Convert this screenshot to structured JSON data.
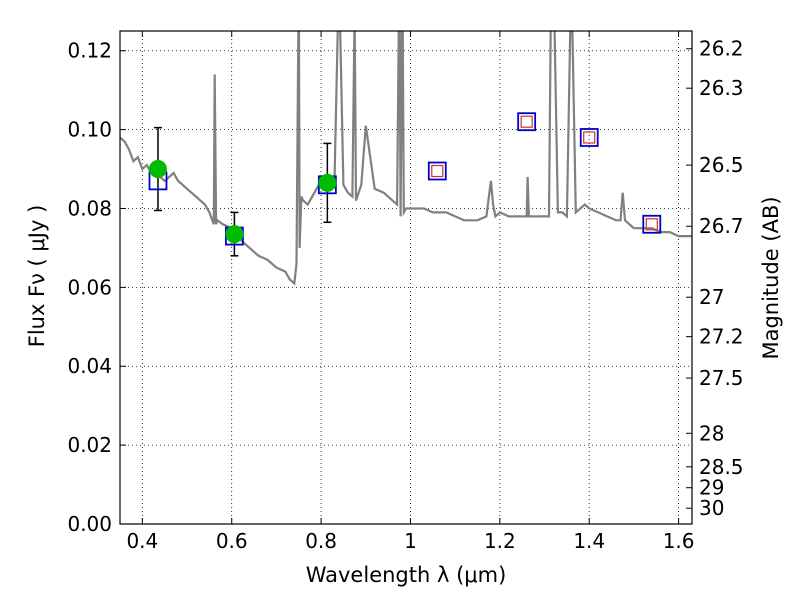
{
  "chart_data": {
    "type": "scatter",
    "xlabel": "Wavelength  λ (μm)",
    "ylabel": "Flux  Fν  ( μJy )",
    "ylabel_right": "Magnitude (AB)",
    "xlim": [
      0.35,
      1.63
    ],
    "ylim": [
      0.0,
      0.125
    ],
    "grid": true,
    "x_ticks": [
      0.4,
      0.6,
      0.8,
      1.0,
      1.2,
      1.4,
      1.6
    ],
    "x_tick_labels": [
      "0.4",
      "0.6",
      "0.8",
      "1",
      "1.2",
      "1.4",
      "1.6"
    ],
    "y_ticks": [
      0.0,
      0.02,
      0.04,
      0.06,
      0.08,
      0.1,
      0.12
    ],
    "y_tick_labels": [
      "0.00",
      "0.02",
      "0.04",
      "0.06",
      "0.08",
      "0.10",
      "0.12"
    ],
    "right_ticks": [
      {
        "flux": 0.1205,
        "label": "26.2"
      },
      {
        "flux": 0.1105,
        "label": "26.3"
      },
      {
        "flux": 0.091,
        "label": "26.5"
      },
      {
        "flux": 0.0755,
        "label": "26.7"
      },
      {
        "flux": 0.0575,
        "label": "27"
      },
      {
        "flux": 0.0475,
        "label": "27.2"
      },
      {
        "flux": 0.037,
        "label": "27.5"
      },
      {
        "flux": 0.023,
        "label": "28"
      },
      {
        "flux": 0.0145,
        "label": "28.5"
      },
      {
        "flux": 0.0092,
        "label": "29"
      },
      {
        "flux": 0.004,
        "label": "30"
      }
    ],
    "series": [
      {
        "kind": "model_spectrum",
        "color": "#808080",
        "x": [
          0.35,
          0.36,
          0.37,
          0.38,
          0.39,
          0.4,
          0.41,
          0.42,
          0.43,
          0.44,
          0.45,
          0.46,
          0.47,
          0.48,
          0.49,
          0.5,
          0.51,
          0.52,
          0.53,
          0.54,
          0.55,
          0.56,
          0.562,
          0.565,
          0.568,
          0.58,
          0.6,
          0.62,
          0.64,
          0.66,
          0.68,
          0.7,
          0.72,
          0.73,
          0.74,
          0.745,
          0.75,
          0.752,
          0.756,
          0.76,
          0.77,
          0.78,
          0.79,
          0.8,
          0.81,
          0.82,
          0.83,
          0.84,
          0.85,
          0.86,
          0.87,
          0.875,
          0.878,
          0.881,
          0.89,
          0.9,
          0.92,
          0.94,
          0.96,
          0.97,
          0.975,
          0.978,
          0.982,
          0.985,
          0.99,
          1.0,
          1.01,
          1.03,
          1.05,
          1.08,
          1.1,
          1.12,
          1.15,
          1.17,
          1.18,
          1.185,
          1.19,
          1.2,
          1.22,
          1.25,
          1.26,
          1.262,
          1.265,
          1.268,
          1.27,
          1.29,
          1.31,
          1.315,
          1.32,
          1.33,
          1.34,
          1.35,
          1.36,
          1.37,
          1.38,
          1.39,
          1.4,
          1.42,
          1.44,
          1.46,
          1.47,
          1.475,
          1.48,
          1.49,
          1.5,
          1.52,
          1.54,
          1.56,
          1.58,
          1.6,
          1.62,
          1.63
        ],
        "y": [
          0.098,
          0.097,
          0.095,
          0.092,
          0.093,
          0.09,
          0.091,
          0.089,
          0.088,
          0.088,
          0.087,
          0.088,
          0.089,
          0.087,
          0.086,
          0.085,
          0.084,
          0.083,
          0.082,
          0.081,
          0.079,
          0.076,
          0.114,
          0.076,
          0.077,
          0.076,
          0.075,
          0.072,
          0.07,
          0.068,
          0.067,
          0.065,
          0.064,
          0.062,
          0.061,
          0.066,
          0.14,
          0.07,
          0.083,
          0.082,
          0.081,
          0.083,
          0.085,
          0.087,
          0.088,
          0.088,
          0.087,
          0.14,
          0.086,
          0.084,
          0.083,
          0.13,
          0.082,
          0.083,
          0.086,
          0.101,
          0.085,
          0.084,
          0.082,
          0.081,
          0.14,
          0.078,
          0.14,
          0.079,
          0.08,
          0.08,
          0.08,
          0.08,
          0.079,
          0.079,
          0.078,
          0.077,
          0.077,
          0.078,
          0.087,
          0.081,
          0.078,
          0.079,
          0.078,
          0.078,
          0.078,
          0.088,
          0.078,
          0.078,
          0.078,
          0.078,
          0.078,
          0.14,
          0.14,
          0.079,
          0.079,
          0.078,
          0.14,
          0.079,
          0.08,
          0.081,
          0.08,
          0.079,
          0.078,
          0.077,
          0.077,
          0.084,
          0.077,
          0.076,
          0.075,
          0.075,
          0.075,
          0.074,
          0.074,
          0.073,
          0.073,
          0.073
        ]
      },
      {
        "kind": "model_photometry",
        "marker": "open-square",
        "color": "#0000cc",
        "x": [
          0.435,
          0.606,
          0.814,
          1.06,
          1.26,
          1.4,
          1.54
        ],
        "y": [
          0.087,
          0.073,
          0.086,
          0.0895,
          0.102,
          0.098,
          0.076
        ]
      },
      {
        "kind": "model_photometry_inner",
        "marker": "open-square-small",
        "color": "#cc3333",
        "x": [
          1.06,
          1.26,
          1.4,
          1.54
        ],
        "y": [
          0.0895,
          0.102,
          0.098,
          0.076
        ]
      },
      {
        "kind": "observed",
        "marker": "filled-circle",
        "color": "#00bb00",
        "x": [
          0.435,
          0.606,
          0.814
        ],
        "y": [
          0.09,
          0.0735,
          0.0865
        ],
        "yerr_low": [
          0.0795,
          0.068,
          0.0765
        ],
        "yerr_high": [
          0.1005,
          0.079,
          0.0965
        ]
      }
    ]
  }
}
